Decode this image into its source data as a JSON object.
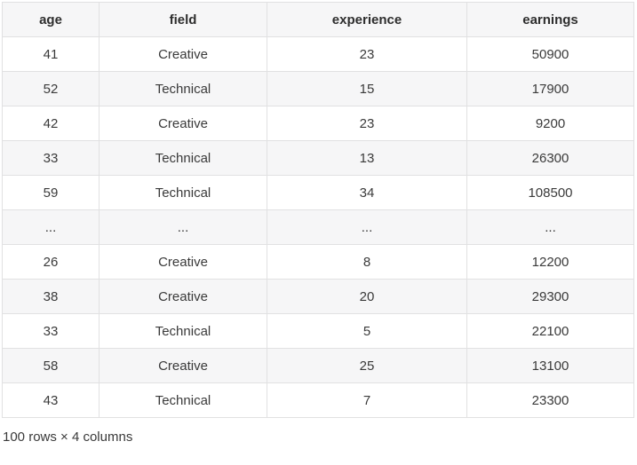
{
  "table": {
    "columns": [
      "age",
      "field",
      "experience",
      "earnings"
    ],
    "rows": [
      [
        "41",
        "Creative",
        "23",
        "50900"
      ],
      [
        "52",
        "Technical",
        "15",
        "17900"
      ],
      [
        "42",
        "Creative",
        "23",
        "9200"
      ],
      [
        "33",
        "Technical",
        "13",
        "26300"
      ],
      [
        "59",
        "Technical",
        "34",
        "108500"
      ],
      [
        "...",
        "...",
        "...",
        "..."
      ],
      [
        "26",
        "Creative",
        "8",
        "12200"
      ],
      [
        "38",
        "Creative",
        "20",
        "29300"
      ],
      [
        "33",
        "Technical",
        "5",
        "22100"
      ],
      [
        "58",
        "Creative",
        "25",
        "13100"
      ],
      [
        "43",
        "Technical",
        "7",
        "23300"
      ]
    ],
    "ellipsis_row_index": 5
  },
  "footer": {
    "summary": "100 rows × 4 columns"
  },
  "colors": {
    "header_bg": "#f6f6f7",
    "stripe_bg": "#f6f6f7",
    "row_bg": "#ffffff",
    "border": "#e1e1e2",
    "header_text": "#2e2e2e",
    "cell_text": "#3a3a3a"
  }
}
